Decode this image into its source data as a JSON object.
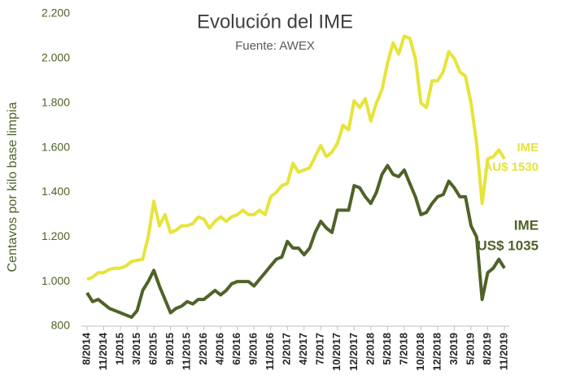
{
  "chart_data": {
    "type": "line",
    "title": "Evolución del IME",
    "subtitle": "Fuente: AWEX",
    "y_label": "Centavos por kilo base limpia",
    "categories": [
      "8/2014",
      null,
      null,
      "11/2014",
      null,
      null,
      "1/2015",
      null,
      null,
      "3/2015",
      null,
      null,
      "6/2015",
      null,
      null,
      "9/2015",
      null,
      null,
      "11/2015",
      null,
      null,
      "2/2016",
      null,
      null,
      "4/2016",
      null,
      null,
      "6/2016",
      null,
      null,
      "9/2016",
      null,
      null,
      "11/2016",
      null,
      null,
      "2/2017",
      null,
      null,
      "4/2017",
      null,
      null,
      "7/2017",
      null,
      null,
      "10/2017",
      null,
      null,
      "12/2017",
      null,
      null,
      "2/2018",
      null,
      null,
      "5/2018",
      null,
      null,
      "7/2018",
      null,
      null,
      "10/2018",
      null,
      null,
      "12/2018",
      null,
      null,
      "3/2019",
      null,
      null,
      "5/2019",
      null,
      null,
      "8/2019",
      null,
      null,
      "11/2019"
    ],
    "series": [
      {
        "color": "#e6e43a",
        "values": [
          1010,
          1020,
          1040,
          1040,
          1055,
          1060,
          1060,
          1070,
          1090,
          1095,
          1100,
          1200,
          1360,
          1250,
          1300,
          1220,
          1230,
          1250,
          1250,
          1260,
          1290,
          1280,
          1240,
          1270,
          1290,
          1270,
          1290,
          1300,
          1320,
          1300,
          1300,
          1320,
          1300,
          1380,
          1400,
          1430,
          1440,
          1530,
          1490,
          1500,
          1510,
          1560,
          1610,
          1560,
          1580,
          1620,
          1700,
          1680,
          1810,
          1780,
          1820,
          1720,
          1800,
          1860,
          1980,
          2070,
          2020,
          2100,
          2090,
          2000,
          1800,
          1780,
          1900,
          1900,
          1940,
          2030,
          2000,
          1940,
          1920,
          1800,
          1620,
          1350,
          1550,
          1560,
          1590,
          1550
        ]
      },
      {
        "color": "#4f6228",
        "values": [
          950,
          910,
          920,
          900,
          880,
          870,
          860,
          850,
          840,
          870,
          960,
          1000,
          1050,
          980,
          920,
          860,
          880,
          890,
          910,
          900,
          920,
          920,
          940,
          960,
          940,
          960,
          990,
          1000,
          1000,
          1000,
          980,
          1010,
          1040,
          1070,
          1100,
          1110,
          1180,
          1150,
          1150,
          1120,
          1150,
          1220,
          1270,
          1240,
          1220,
          1320,
          1320,
          1320,
          1430,
          1420,
          1380,
          1350,
          1400,
          1480,
          1520,
          1480,
          1470,
          1500,
          1440,
          1380,
          1300,
          1310,
          1350,
          1380,
          1390,
          1450,
          1420,
          1380,
          1380,
          1250,
          1200,
          920,
          1040,
          1060,
          1100,
          1060
        ]
      }
    ],
    "annotations": [
      {
        "lines": [
          "IME",
          "AU$ 1530"
        ],
        "color": "#e6e43a"
      },
      {
        "lines": [
          "IME",
          "US$ 1035"
        ],
        "color": "#4f6228"
      }
    ],
    "ylim": [
      800,
      2200
    ],
    "yticks": [
      800,
      {
        "value": 1000,
        "label": "1.000"
      },
      {
        "value": 1200,
        "label": "1.200"
      },
      {
        "value": 1400,
        "label": "1.400"
      },
      {
        "value": 1600,
        "label": "1.600"
      },
      {
        "value": 1800,
        "label": "1.800"
      },
      {
        "value": 2000,
        "label": "2.000"
      },
      {
        "value": 2200,
        "label": "2.200"
      }
    ]
  }
}
